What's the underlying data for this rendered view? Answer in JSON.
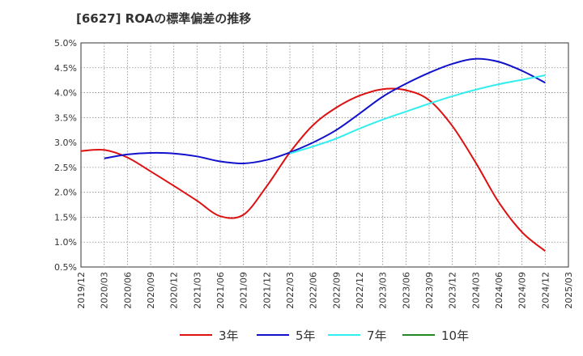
{
  "title": "[6627]  ROAの標準偏差の推移",
  "chart_data": {
    "type": "line",
    "title": "[6627]  ROAの標準偏差の推移",
    "xlabel": "",
    "ylabel": "",
    "ylim": [
      0.5,
      5.0
    ],
    "yticks": [
      "0.5%",
      "1.0%",
      "1.5%",
      "2.0%",
      "2.5%",
      "3.0%",
      "3.5%",
      "4.0%",
      "4.5%",
      "5.0%"
    ],
    "categories": [
      "2019/12",
      "2020/03",
      "2020/06",
      "2020/09",
      "2020/12",
      "2021/03",
      "2021/06",
      "2021/09",
      "2021/12",
      "2022/03",
      "2022/06",
      "2022/09",
      "2022/12",
      "2023/03",
      "2023/06",
      "2023/09",
      "2023/12",
      "2024/03",
      "2024/06",
      "2024/09",
      "2024/12",
      "2025/03"
    ],
    "grid": true,
    "legend_position": "bottom",
    "series": [
      {
        "name": "3年",
        "color": "#dd1111",
        "values": [
          2.83,
          2.85,
          2.7,
          2.42,
          2.13,
          1.83,
          1.52,
          1.55,
          2.12,
          2.8,
          3.35,
          3.7,
          3.94,
          4.07,
          4.05,
          3.85,
          3.33,
          2.6,
          1.8,
          1.2,
          0.82,
          null
        ]
      },
      {
        "name": "5年",
        "color": "#1111cc",
        "values": [
          null,
          2.68,
          2.76,
          2.79,
          2.78,
          2.72,
          2.62,
          2.58,
          2.65,
          2.8,
          3.0,
          3.25,
          3.58,
          3.92,
          4.18,
          4.4,
          4.58,
          4.68,
          4.62,
          4.44,
          4.2,
          null
        ]
      },
      {
        "name": "7年",
        "color": "#33eeee",
        "values": [
          null,
          null,
          null,
          null,
          null,
          null,
          null,
          null,
          null,
          2.78,
          2.92,
          3.08,
          3.28,
          3.46,
          3.62,
          3.78,
          3.93,
          4.06,
          4.17,
          4.26,
          4.35,
          null
        ]
      },
      {
        "name": "10年",
        "color": "#228822",
        "values": [
          null,
          null,
          null,
          null,
          null,
          null,
          null,
          null,
          null,
          null,
          null,
          null,
          null,
          null,
          null,
          null,
          null,
          null,
          null,
          null,
          null,
          null
        ]
      }
    ]
  }
}
